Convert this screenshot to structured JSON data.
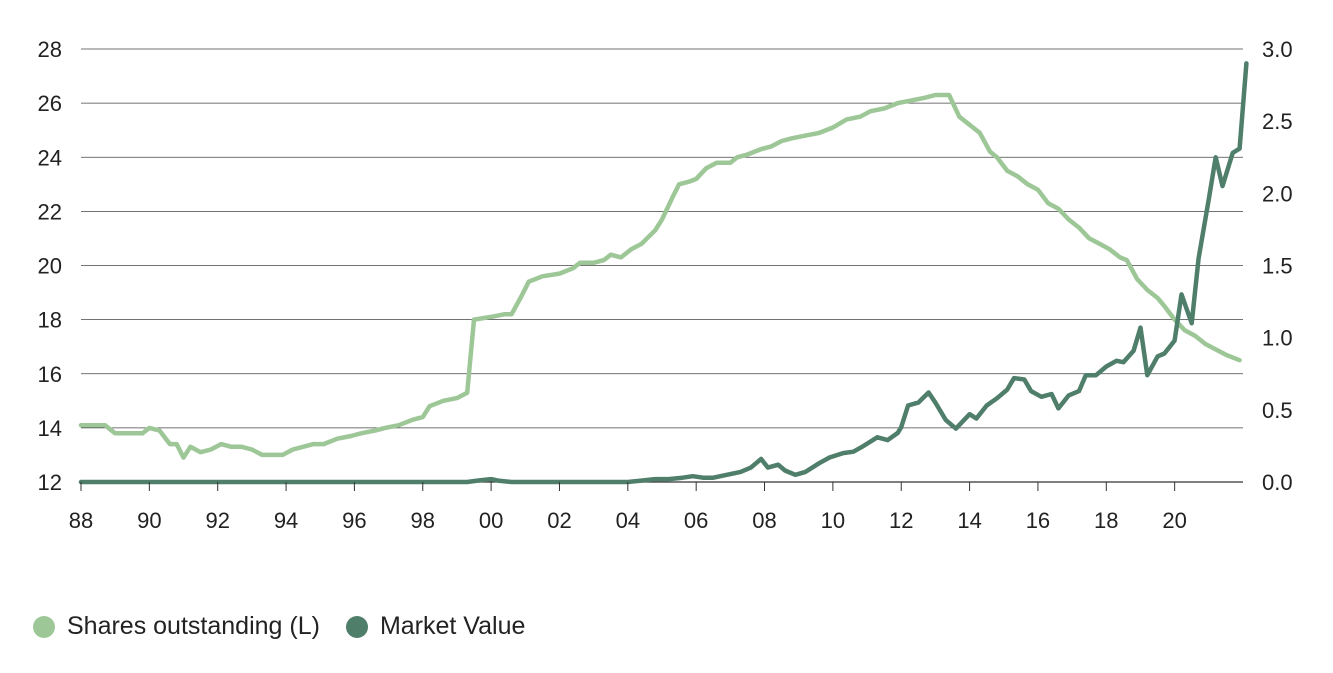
{
  "chart_data": {
    "type": "line",
    "x_tick_labels": [
      "88",
      "90",
      "92",
      "94",
      "96",
      "98",
      "00",
      "02",
      "04",
      "06",
      "08",
      "10",
      "12",
      "14",
      "16",
      "18",
      "20"
    ],
    "left_axis": {
      "ticks": [
        "12",
        "14",
        "16",
        "18",
        "20",
        "22",
        "24",
        "26",
        "28"
      ],
      "range": [
        12,
        28
      ]
    },
    "right_axis": {
      "ticks": [
        "0.0",
        "0.5",
        "1.0",
        "1.5",
        "2.0",
        "2.5",
        "3.0"
      ],
      "range": [
        0,
        3
      ]
    },
    "x_range": [
      1988,
      2022
    ],
    "grid": "horizontal",
    "legend_position": "bottom-left",
    "series": [
      {
        "name": "Shares outstanding (L)",
        "axis": "left",
        "color": "#9dc797",
        "points": [
          [
            1988.0,
            14.1
          ],
          [
            1988.7,
            14.1
          ],
          [
            1989.0,
            13.8
          ],
          [
            1989.8,
            13.8
          ],
          [
            1990.0,
            14.0
          ],
          [
            1990.3,
            13.9
          ],
          [
            1990.6,
            13.4
          ],
          [
            1990.8,
            13.4
          ],
          [
            1991.0,
            12.9
          ],
          [
            1991.2,
            13.3
          ],
          [
            1991.5,
            13.1
          ],
          [
            1991.8,
            13.2
          ],
          [
            1992.1,
            13.4
          ],
          [
            1992.4,
            13.3
          ],
          [
            1992.7,
            13.3
          ],
          [
            1993.0,
            13.2
          ],
          [
            1993.3,
            13.0
          ],
          [
            1993.6,
            13.0
          ],
          [
            1993.9,
            13.0
          ],
          [
            1994.2,
            13.2
          ],
          [
            1994.5,
            13.3
          ],
          [
            1994.8,
            13.4
          ],
          [
            1995.1,
            13.4
          ],
          [
            1995.5,
            13.6
          ],
          [
            1995.9,
            13.7
          ],
          [
            1996.2,
            13.8
          ],
          [
            1996.6,
            13.9
          ],
          [
            1996.9,
            14.0
          ],
          [
            1997.3,
            14.1
          ],
          [
            1997.7,
            14.3
          ],
          [
            1998.0,
            14.4
          ],
          [
            1998.2,
            14.8
          ],
          [
            1998.6,
            15.0
          ],
          [
            1999.0,
            15.1
          ],
          [
            1999.3,
            15.3
          ],
          [
            1999.5,
            18.0
          ],
          [
            2000.0,
            18.1
          ],
          [
            2000.4,
            18.2
          ],
          [
            2000.6,
            18.2
          ],
          [
            2000.9,
            18.9
          ],
          [
            2001.1,
            19.4
          ],
          [
            2001.5,
            19.6
          ],
          [
            2002.0,
            19.7
          ],
          [
            2002.4,
            19.9
          ],
          [
            2002.6,
            20.1
          ],
          [
            2003.0,
            20.1
          ],
          [
            2003.3,
            20.2
          ],
          [
            2003.5,
            20.4
          ],
          [
            2003.8,
            20.3
          ],
          [
            2004.1,
            20.6
          ],
          [
            2004.4,
            20.8
          ],
          [
            2004.8,
            21.3
          ],
          [
            2005.0,
            21.7
          ],
          [
            2005.3,
            22.5
          ],
          [
            2005.5,
            23.0
          ],
          [
            2005.8,
            23.1
          ],
          [
            2006.0,
            23.2
          ],
          [
            2006.3,
            23.6
          ],
          [
            2006.6,
            23.8
          ],
          [
            2007.0,
            23.8
          ],
          [
            2007.2,
            24.0
          ],
          [
            2007.5,
            24.1
          ],
          [
            2007.9,
            24.3
          ],
          [
            2008.2,
            24.4
          ],
          [
            2008.5,
            24.6
          ],
          [
            2008.8,
            24.7
          ],
          [
            2009.2,
            24.8
          ],
          [
            2009.6,
            24.9
          ],
          [
            2010.0,
            25.1
          ],
          [
            2010.4,
            25.4
          ],
          [
            2010.8,
            25.5
          ],
          [
            2011.1,
            25.7
          ],
          [
            2011.5,
            25.8
          ],
          [
            2011.9,
            26.0
          ],
          [
            2012.3,
            26.1
          ],
          [
            2012.7,
            26.2
          ],
          [
            2013.0,
            26.3
          ],
          [
            2013.4,
            26.3
          ],
          [
            2013.7,
            25.5
          ],
          [
            2014.0,
            25.2
          ],
          [
            2014.3,
            24.9
          ],
          [
            2014.6,
            24.2
          ],
          [
            2014.8,
            24.0
          ],
          [
            2015.1,
            23.5
          ],
          [
            2015.4,
            23.3
          ],
          [
            2015.7,
            23.0
          ],
          [
            2016.0,
            22.8
          ],
          [
            2016.3,
            22.3
          ],
          [
            2016.6,
            22.1
          ],
          [
            2016.9,
            21.7
          ],
          [
            2017.2,
            21.4
          ],
          [
            2017.5,
            21.0
          ],
          [
            2017.8,
            20.8
          ],
          [
            2018.1,
            20.6
          ],
          [
            2018.4,
            20.3
          ],
          [
            2018.6,
            20.2
          ],
          [
            2018.9,
            19.5
          ],
          [
            2019.2,
            19.1
          ],
          [
            2019.5,
            18.8
          ],
          [
            2019.7,
            18.5
          ],
          [
            2020.0,
            18.0
          ],
          [
            2020.3,
            17.6
          ],
          [
            2020.6,
            17.4
          ],
          [
            2020.9,
            17.1
          ],
          [
            2021.2,
            16.9
          ],
          [
            2021.5,
            16.7
          ],
          [
            2021.9,
            16.5
          ]
        ]
      },
      {
        "name": "Market Value",
        "axis": "right",
        "color": "#4f7e6b",
        "points": [
          [
            1988.0,
            0.0
          ],
          [
            1999.3,
            0.0
          ],
          [
            1999.6,
            0.01
          ],
          [
            2000.0,
            0.02
          ],
          [
            2000.2,
            0.01
          ],
          [
            2000.6,
            0.0
          ],
          [
            2004.0,
            0.0
          ],
          [
            2004.4,
            0.01
          ],
          [
            2004.8,
            0.02
          ],
          [
            2005.2,
            0.02
          ],
          [
            2005.6,
            0.03
          ],
          [
            2005.9,
            0.04
          ],
          [
            2006.2,
            0.03
          ],
          [
            2006.5,
            0.03
          ],
          [
            2006.9,
            0.05
          ],
          [
            2007.3,
            0.07
          ],
          [
            2007.6,
            0.1
          ],
          [
            2007.9,
            0.16
          ],
          [
            2008.1,
            0.1
          ],
          [
            2008.4,
            0.12
          ],
          [
            2008.6,
            0.08
          ],
          [
            2008.9,
            0.05
          ],
          [
            2009.2,
            0.07
          ],
          [
            2009.6,
            0.13
          ],
          [
            2009.9,
            0.17
          ],
          [
            2010.3,
            0.2
          ],
          [
            2010.6,
            0.21
          ],
          [
            2010.9,
            0.25
          ],
          [
            2011.3,
            0.31
          ],
          [
            2011.6,
            0.29
          ],
          [
            2011.9,
            0.34
          ],
          [
            2012.0,
            0.38
          ],
          [
            2012.2,
            0.53
          ],
          [
            2012.5,
            0.55
          ],
          [
            2012.8,
            0.62
          ],
          [
            2013.0,
            0.55
          ],
          [
            2013.3,
            0.43
          ],
          [
            2013.6,
            0.37
          ],
          [
            2014.0,
            0.47
          ],
          [
            2014.2,
            0.44
          ],
          [
            2014.5,
            0.53
          ],
          [
            2014.8,
            0.58
          ],
          [
            2015.1,
            0.64
          ],
          [
            2015.3,
            0.72
          ],
          [
            2015.6,
            0.71
          ],
          [
            2015.8,
            0.63
          ],
          [
            2016.1,
            0.59
          ],
          [
            2016.4,
            0.61
          ],
          [
            2016.6,
            0.51
          ],
          [
            2016.9,
            0.6
          ],
          [
            2017.2,
            0.63
          ],
          [
            2017.4,
            0.74
          ],
          [
            2017.7,
            0.74
          ],
          [
            2018.0,
            0.8
          ],
          [
            2018.3,
            0.84
          ],
          [
            2018.5,
            0.83
          ],
          [
            2018.8,
            0.91
          ],
          [
            2019.0,
            1.07
          ],
          [
            2019.2,
            0.74
          ],
          [
            2019.5,
            0.87
          ],
          [
            2019.7,
            0.89
          ],
          [
            2020.0,
            0.98
          ],
          [
            2020.2,
            1.3
          ],
          [
            2020.5,
            1.1
          ],
          [
            2020.7,
            1.55
          ],
          [
            2021.0,
            1.96
          ],
          [
            2021.2,
            2.25
          ],
          [
            2021.4,
            2.05
          ],
          [
            2021.7,
            2.28
          ],
          [
            2021.9,
            2.31
          ],
          [
            2022.1,
            2.9
          ]
        ]
      }
    ]
  }
}
